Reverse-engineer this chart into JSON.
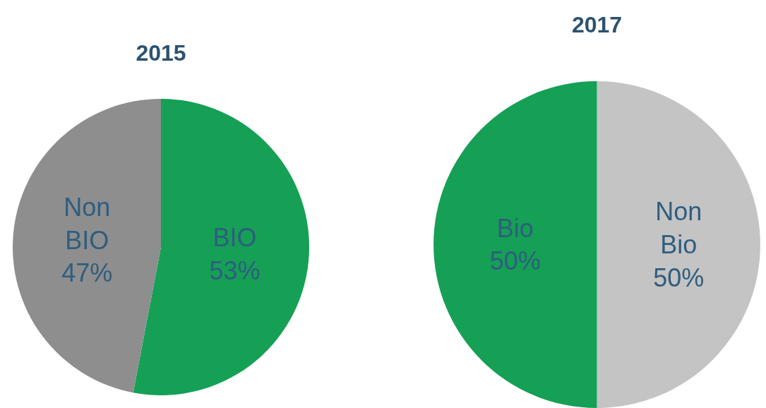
{
  "chart_data": [
    {
      "type": "pie",
      "title": "2015",
      "categories": [
        "BIO",
        "Non BIO"
      ],
      "values": [
        53,
        47
      ],
      "value_labels": [
        "53%",
        "47%"
      ],
      "colors": [
        "#15a055",
        "#8e8e8e"
      ],
      "legend": false
    },
    {
      "type": "pie",
      "title": "2017",
      "categories": [
        "Non Bio",
        "Bio"
      ],
      "values": [
        50,
        50
      ],
      "value_labels": [
        "50%",
        "50%"
      ],
      "colors": [
        "#c4c4c4",
        "#15a055"
      ],
      "legend": false
    }
  ]
}
